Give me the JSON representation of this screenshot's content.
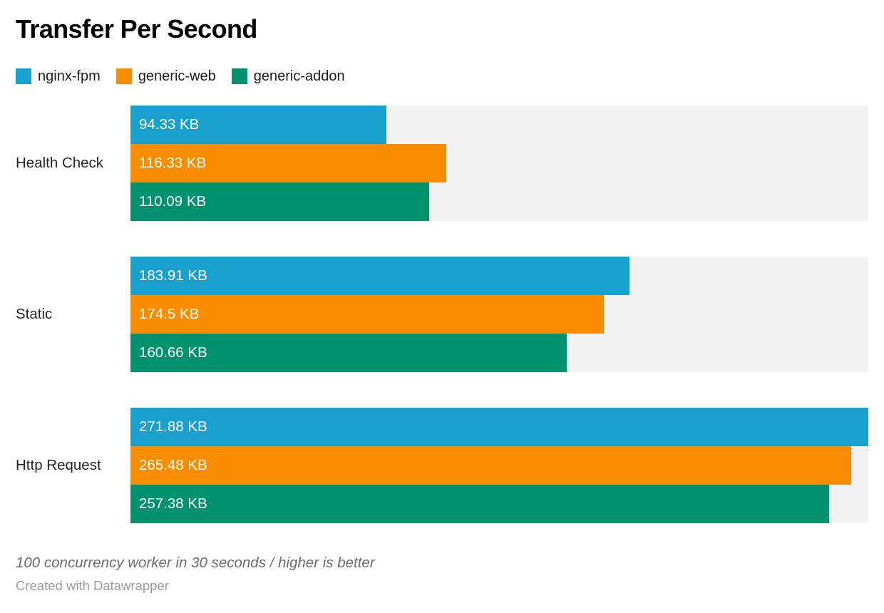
{
  "header": {
    "title": "Transfer Per Second"
  },
  "legend": {
    "items": [
      {
        "label": "nginx-fpm",
        "color": "#18a1cd"
      },
      {
        "label": "generic-web",
        "color": "#f98d00"
      },
      {
        "label": "generic-addon",
        "color": "#00926e"
      }
    ]
  },
  "chart_data": {
    "type": "bar",
    "orientation": "horizontal",
    "title": "Transfer Per Second",
    "categories": [
      "Health Check",
      "Static",
      "Http Request"
    ],
    "series": [
      {
        "name": "nginx-fpm",
        "color": "#18a1cd",
        "values": [
          94.33,
          183.91,
          271.88
        ],
        "labels": [
          "94.33 KB",
          "183.91 KB",
          "271.88 KB"
        ]
      },
      {
        "name": "generic-web",
        "color": "#f98d00",
        "values": [
          116.33,
          174.5,
          265.48
        ],
        "labels": [
          "116.33 KB",
          "174.5 KB",
          "265.48 KB"
        ]
      },
      {
        "name": "generic-addon",
        "color": "#00926e",
        "values": [
          110.09,
          160.66,
          257.38
        ],
        "labels": [
          "110.09 KB",
          "160.66 KB",
          "257.38 KB"
        ]
      }
    ],
    "xlim": [
      0,
      271.88
    ],
    "value_unit": "KB",
    "track_color": "#f2f2f2",
    "grid": false,
    "legend_position": "top",
    "value_labels_inside_bars": true
  },
  "footer": {
    "note": "100 concurrency worker in 30 seconds / higher is better",
    "attribution": "Created with Datawrapper"
  }
}
